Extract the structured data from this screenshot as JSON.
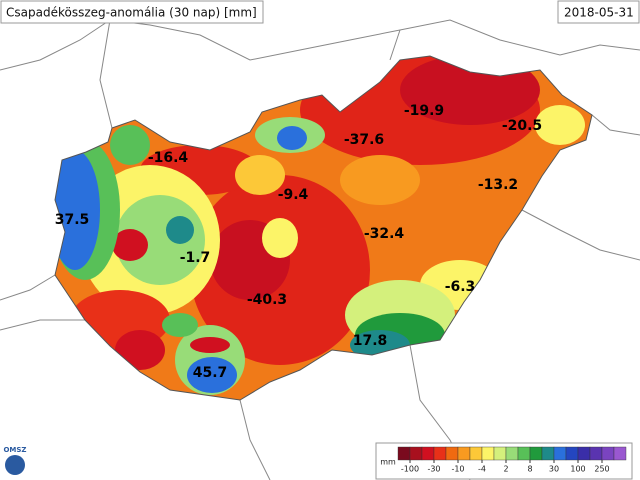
{
  "header": {
    "title": "Csapadékösszeg-anomália (30 nap) [mm]",
    "date": "2018-05-31"
  },
  "labels": [
    {
      "value": -16.4
    },
    {
      "value": 37.5
    },
    {
      "value": -1.7
    },
    {
      "value": 45.7
    },
    {
      "value": -40.3
    },
    {
      "value": 17.8
    },
    {
      "value": -9.4
    },
    {
      "value": -37.6
    },
    {
      "value": -32.4
    },
    {
      "value": -19.9
    },
    {
      "value": -20.5
    },
    {
      "value": -13.2
    },
    {
      "value": -6.3
    }
  ],
  "legend": {
    "unit": "mm",
    "colors": [
      "#7a0a1e",
      "#a8101e",
      "#d01020",
      "#e83018",
      "#f06a10",
      "#f89a20",
      "#fcc838",
      "#fcf468",
      "#d4f07c",
      "#98dc78",
      "#58c058",
      "#209a3c",
      "#1e8a8a",
      "#2a70dc",
      "#2446c0",
      "#3a2ea8",
      "#5a34b0",
      "#7a44c0",
      "#9a58d0"
    ],
    "ticks": [
      -100,
      -30,
      -10,
      -4,
      2,
      8,
      30,
      100,
      250
    ]
  },
  "logo": "OMSZ"
}
